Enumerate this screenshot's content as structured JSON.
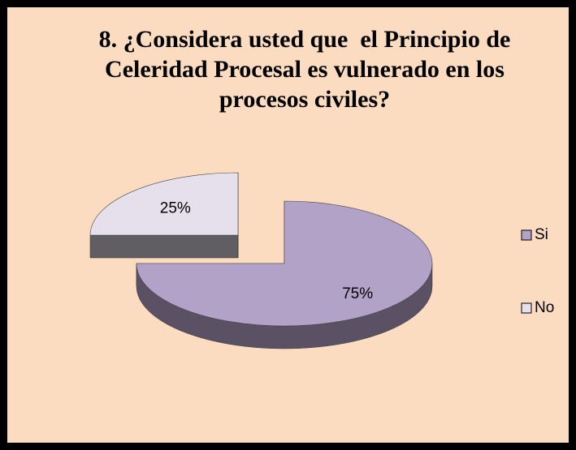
{
  "chart_data": {
    "type": "pie3d",
    "title": "8. ¿Considera usted que  el Principio de Celeridad Procesal es vulnerado en los procesos civiles?",
    "categories": [
      "Si",
      "No"
    ],
    "values": [
      75,
      25
    ],
    "value_labels": [
      "75%",
      "25%"
    ],
    "colors": [
      "#b3a2c7",
      "#e6e0ec"
    ],
    "legend": "right"
  }
}
